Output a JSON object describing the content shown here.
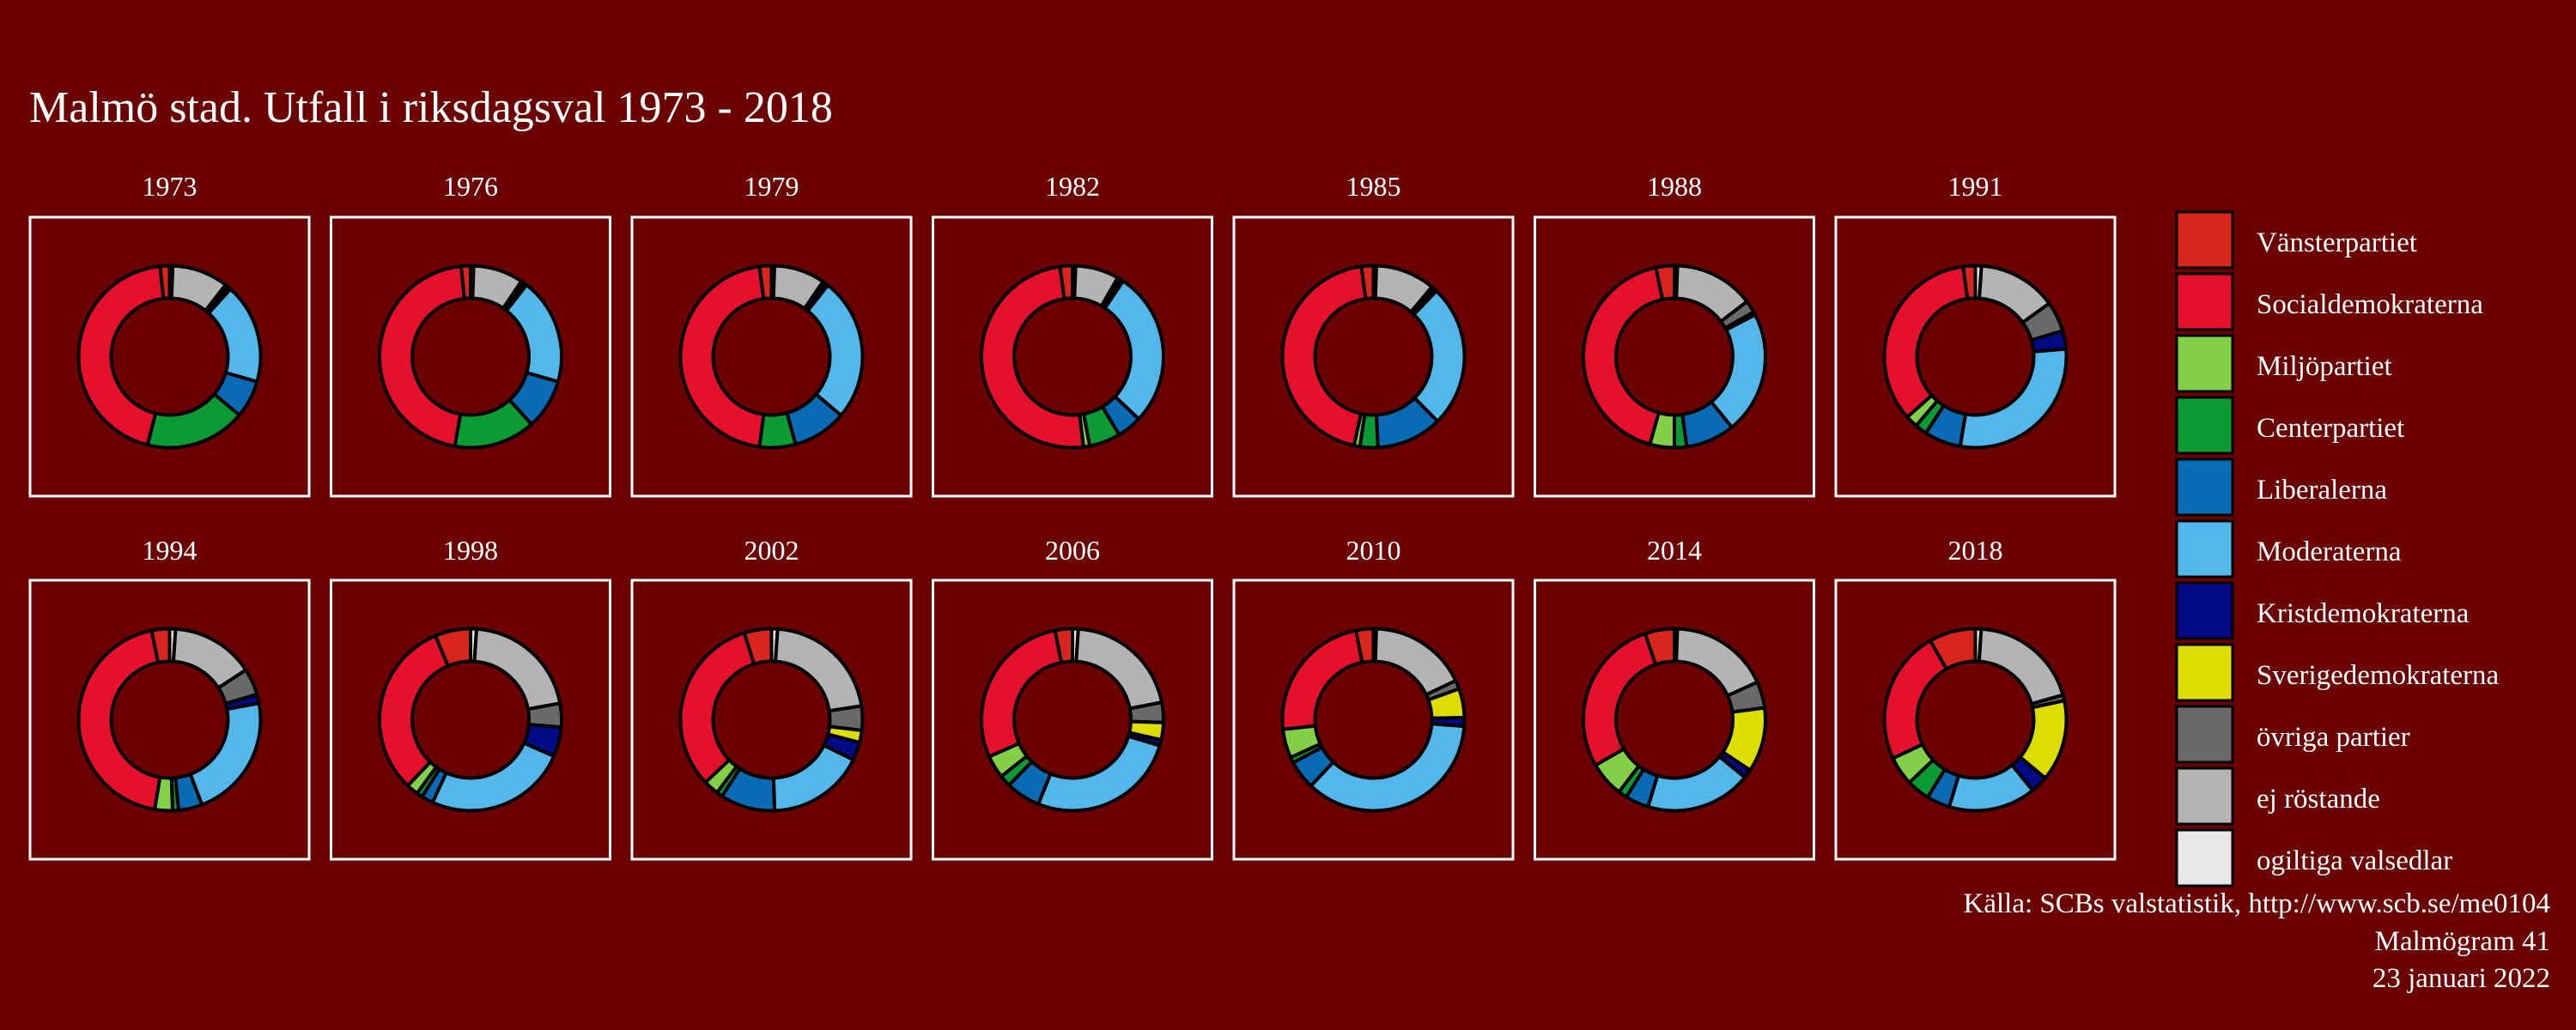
{
  "chart_data": {
    "type": "donut-grid",
    "title": "Malmö stad. Utfall i riksdagsval 1973 - 2018",
    "categories": [
      "Vänsterpartiet",
      "Socialdemokraterna",
      "Miljöpartiet",
      "Centerpartiet",
      "Liberalerna",
      "Moderaterna",
      "Kristdemokraterna",
      "Sverigedemokraterna",
      "övriga partier",
      "ej röstande",
      "ogiltiga valsedlar"
    ],
    "colors": [
      "#d8261f",
      "#e5102c",
      "#83cf48",
      "#0c9a35",
      "#0b6ab4",
      "#53b7ea",
      "#010a85",
      "#dedd00",
      "#696969",
      "#b4b4b4",
      "#e8e8e8"
    ],
    "legend_position": "right",
    "years": [
      {
        "year": "1973",
        "values": [
          1.5,
          40.0,
          0.0,
          16.0,
          6.0,
          16.0,
          0.5,
          0.0,
          0.5,
          9.0,
          0.5
        ]
      },
      {
        "year": "1976",
        "values": [
          1.5,
          41.0,
          0.0,
          13.0,
          8.0,
          17.0,
          0.5,
          0.0,
          0.5,
          8.0,
          0.5
        ]
      },
      {
        "year": "1979",
        "values": [
          2.0,
          43.0,
          0.0,
          6.0,
          9.0,
          24.0,
          0.5,
          0.0,
          0.5,
          8.5,
          0.5
        ]
      },
      {
        "year": "1982",
        "values": [
          2.0,
          45.0,
          1.0,
          5.0,
          4.0,
          25.0,
          0.5,
          0.0,
          0.5,
          7.0,
          0.5
        ]
      },
      {
        "year": "1985",
        "values": [
          2.0,
          42.0,
          1.0,
          3.0,
          11.0,
          24.0,
          0.5,
          0.0,
          0.5,
          10.0,
          0.5
        ]
      },
      {
        "year": "1988",
        "values": [
          3.0,
          39.0,
          4.0,
          2.0,
          8.0,
          20.0,
          0.5,
          0.0,
          2.0,
          13.0,
          0.5
        ]
      },
      {
        "year": "1991",
        "values": [
          2.0,
          32.0,
          2.0,
          2.0,
          6.0,
          27.0,
          3.0,
          0.0,
          5.0,
          13.0,
          1.0
        ]
      },
      {
        "year": "1994",
        "values": [
          3.0,
          42.0,
          3.0,
          1.0,
          4.0,
          21.0,
          1.5,
          0.0,
          4.5,
          14.0,
          1.0
        ]
      },
      {
        "year": "1998",
        "values": [
          6.0,
          30.0,
          2.0,
          1.0,
          2.0,
          24.0,
          5.0,
          0.0,
          4.0,
          20.0,
          1.0
        ]
      },
      {
        "year": "2002",
        "values": [
          4.5,
          30.0,
          2.5,
          1.0,
          9.0,
          16.0,
          3.0,
          2.0,
          4.0,
          20.0,
          1.0
        ]
      },
      {
        "year": "2006",
        "values": [
          3.0,
          28.0,
          4.0,
          2.0,
          6.0,
          26.0,
          1.0,
          3.0,
          3.5,
          20.5,
          1.0
        ]
      },
      {
        "year": "2010",
        "values": [
          3.0,
          23.0,
          5.0,
          1.0,
          5.0,
          35.0,
          1.5,
          5.0,
          1.5,
          17.0,
          0.5
        ]
      },
      {
        "year": "2014",
        "values": [
          5.0,
          27.0,
          6.0,
          1.5,
          4.0,
          18.0,
          1.5,
          11.0,
          4.5,
          17.0,
          0.5
        ]
      },
      {
        "year": "2018",
        "values": [
          8.0,
          23.0,
          5.0,
          4.0,
          4.0,
          15.0,
          3.0,
          14.0,
          1.0,
          19.0,
          1.0
        ]
      }
    ]
  },
  "source_lines": [
    "Källa: SCBs valstatistik, http://www.scb.se/me0104",
    "Malmögram 41",
    "23 januari 2022"
  ]
}
